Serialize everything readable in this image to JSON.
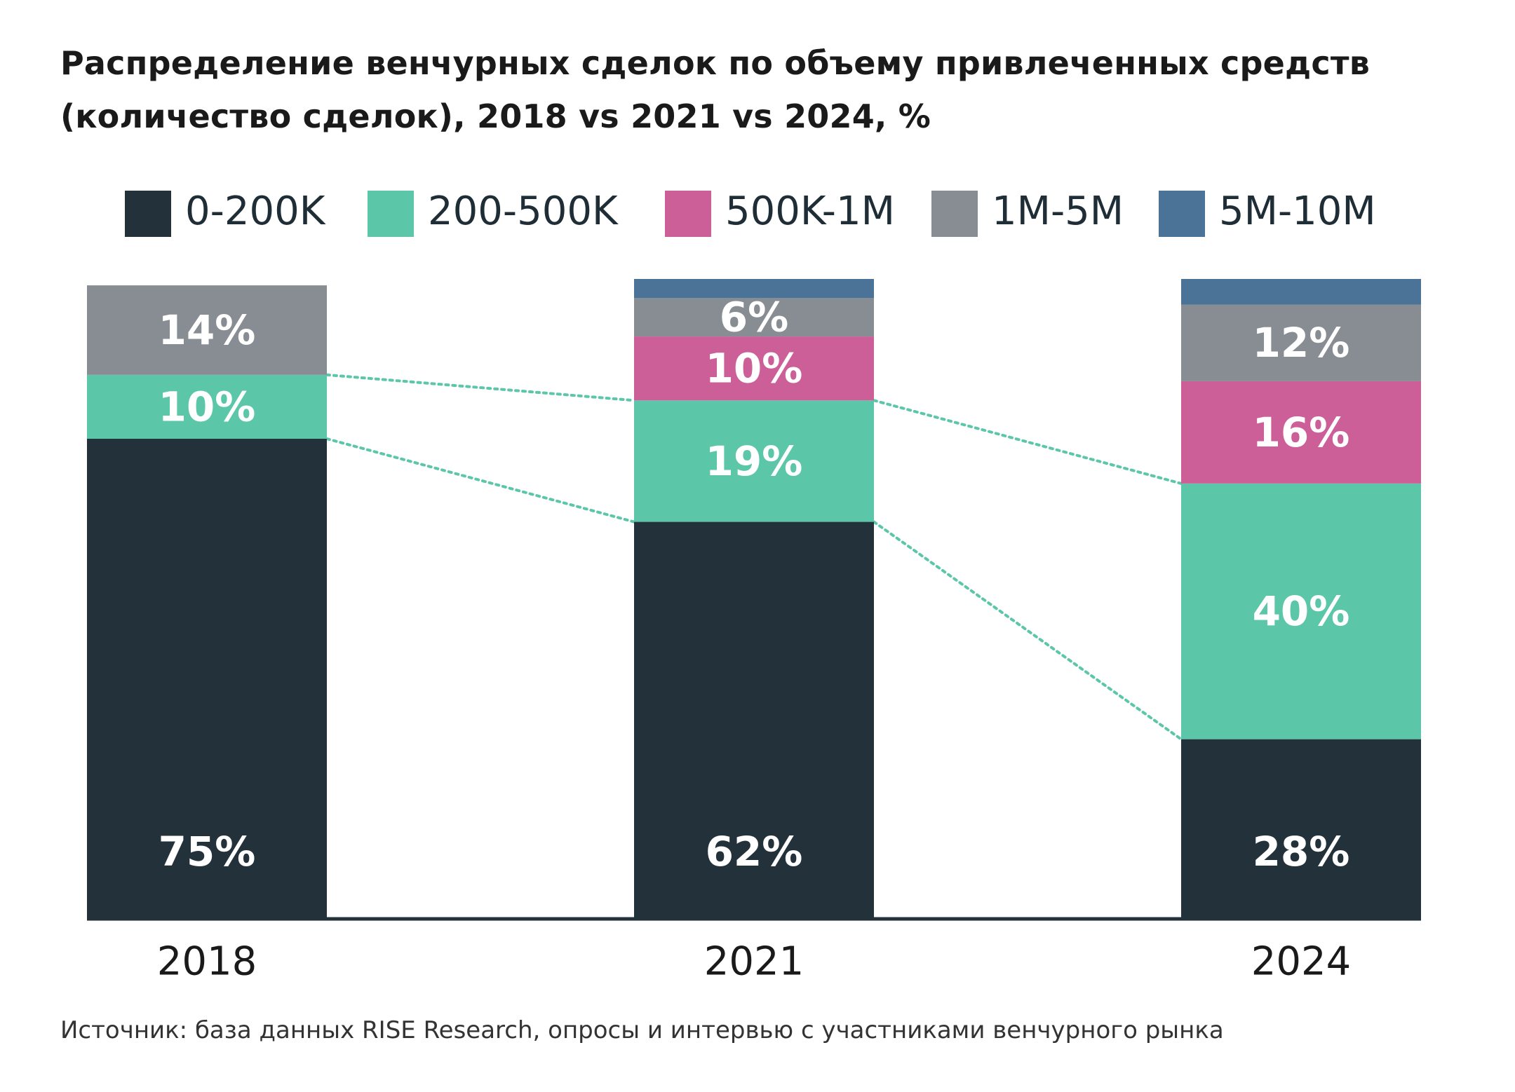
{
  "chart_data": {
    "type": "bar",
    "stacked": true,
    "title_lines": [
      "Распределение венчурных сделок по объему привлеченных средств",
      "(количество сделок), 2018 vs 2021 vs 2024, %"
    ],
    "categories": [
      "2018",
      "2021",
      "2024"
    ],
    "series": [
      {
        "name": "0-200K",
        "color": "#22313a",
        "values": [
          75,
          62,
          28
        ],
        "labels": [
          "75%",
          "62%",
          "28%"
        ]
      },
      {
        "name": "200-500K",
        "color": "#5cc6a8",
        "values": [
          10,
          19,
          40
        ],
        "labels": [
          "10%",
          "19%",
          "40%"
        ]
      },
      {
        "name": "500K-1M",
        "color": "#cc5f98",
        "values": [
          0,
          10,
          16
        ],
        "labels": [
          "",
          "10%",
          "16%"
        ]
      },
      {
        "name": "1M-5M",
        "color": "#878d92",
        "values": [
          14,
          6,
          12
        ],
        "labels": [
          "14%",
          "6%",
          "12%"
        ]
      },
      {
        "name": "5M-10M",
        "color": "#4b7398",
        "values": [
          0,
          3,
          4
        ],
        "labels": [
          "",
          "",
          ""
        ]
      }
    ],
    "ylim": [
      0,
      100
    ],
    "legend_position": "top",
    "connector_color": "#5cc6a8",
    "source": "Источник: база данных RISE Research, опросы и интервью с участниками венчурного рынка"
  }
}
